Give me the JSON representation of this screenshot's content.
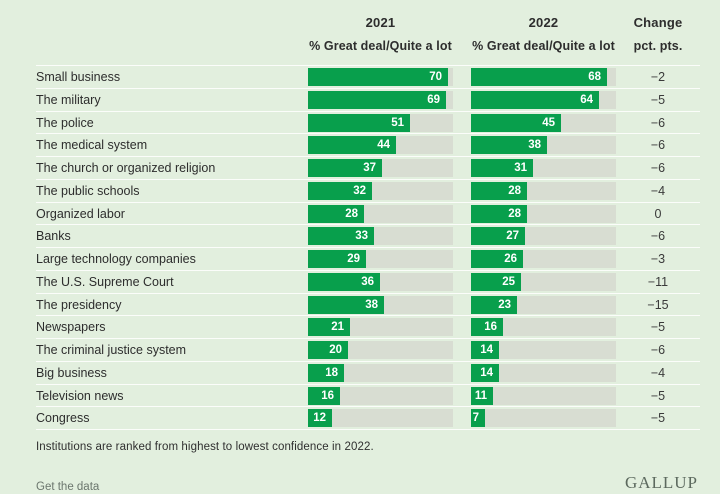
{
  "header": {
    "col_2021": "2021",
    "col_2022": "2022",
    "col_change": "Change",
    "sub_2021": "% Great deal/Quite a lot",
    "sub_2022": "% Great deal/Quite a lot",
    "sub_change": "pct. pts."
  },
  "rows": [
    {
      "label": "Small business",
      "v2021": 70,
      "v2022": 68,
      "change": "−2"
    },
    {
      "label": "The military",
      "v2021": 69,
      "v2022": 64,
      "change": "−5"
    },
    {
      "label": "The police",
      "v2021": 51,
      "v2022": 45,
      "change": "−6"
    },
    {
      "label": "The medical system",
      "v2021": 44,
      "v2022": 38,
      "change": "−6"
    },
    {
      "label": "The church or organized religion",
      "v2021": 37,
      "v2022": 31,
      "change": "−6"
    },
    {
      "label": "The public schools",
      "v2021": 32,
      "v2022": 28,
      "change": "−4"
    },
    {
      "label": "Organized labor",
      "v2021": 28,
      "v2022": 28,
      "change": "0"
    },
    {
      "label": "Banks",
      "v2021": 33,
      "v2022": 27,
      "change": "−6"
    },
    {
      "label": "Large technology companies",
      "v2021": 29,
      "v2022": 26,
      "change": "−3"
    },
    {
      "label": "The U.S. Supreme Court",
      "v2021": 36,
      "v2022": 25,
      "change": "−11"
    },
    {
      "label": "The presidency",
      "v2021": 38,
      "v2022": 23,
      "change": "−15"
    },
    {
      "label": "Newspapers",
      "v2021": 21,
      "v2022": 16,
      "change": "−5"
    },
    {
      "label": "The criminal justice system",
      "v2021": 20,
      "v2022": 14,
      "change": "−6"
    },
    {
      "label": "Big business",
      "v2021": 18,
      "v2022": 14,
      "change": "−4"
    },
    {
      "label": "Television news",
      "v2021": 16,
      "v2022": 11,
      "change": "−5"
    },
    {
      "label": "Congress",
      "v2021": 12,
      "v2022": 7,
      "change": "−5"
    }
  ],
  "footer": {
    "note": "Institutions are ranked from highest to lowest confidence in 2022.",
    "link": "Get the data",
    "logo": "GALLUP"
  },
  "colors": {
    "background": "#e2efde",
    "bar": "#089f4c",
    "track": "#d8ddd2",
    "text": "#2d2d2d"
  },
  "chart_data": {
    "type": "bar",
    "orientation": "horizontal",
    "categories": [
      "Small business",
      "The military",
      "The police",
      "The medical system",
      "The church or organized religion",
      "The public schools",
      "Organized labor",
      "Banks",
      "Large technology companies",
      "The U.S. Supreme Court",
      "The presidency",
      "Newspapers",
      "The criminal justice system",
      "Big business",
      "Television news",
      "Congress"
    ],
    "series": [
      {
        "name": "2021 % Great deal/Quite a lot",
        "values": [
          70,
          69,
          51,
          44,
          37,
          32,
          28,
          33,
          29,
          36,
          38,
          21,
          20,
          18,
          16,
          12
        ]
      },
      {
        "name": "2022 % Great deal/Quite a lot",
        "values": [
          68,
          64,
          45,
          38,
          31,
          28,
          28,
          27,
          26,
          25,
          23,
          16,
          14,
          14,
          11,
          7
        ]
      }
    ],
    "change_pct_pts": [
      -2,
      -5,
      -6,
      -6,
      -6,
      -4,
      0,
      -6,
      -3,
      -11,
      -15,
      -5,
      -6,
      -4,
      -5,
      -5
    ],
    "title": "",
    "xlabel": "% Great deal/Quite a lot",
    "ylabel": "",
    "xlim": [
      0,
      72.5
    ],
    "value_labels": "inside-end",
    "note": "Institutions are ranked from highest to lowest confidence in 2022.",
    "source": "GALLUP"
  }
}
